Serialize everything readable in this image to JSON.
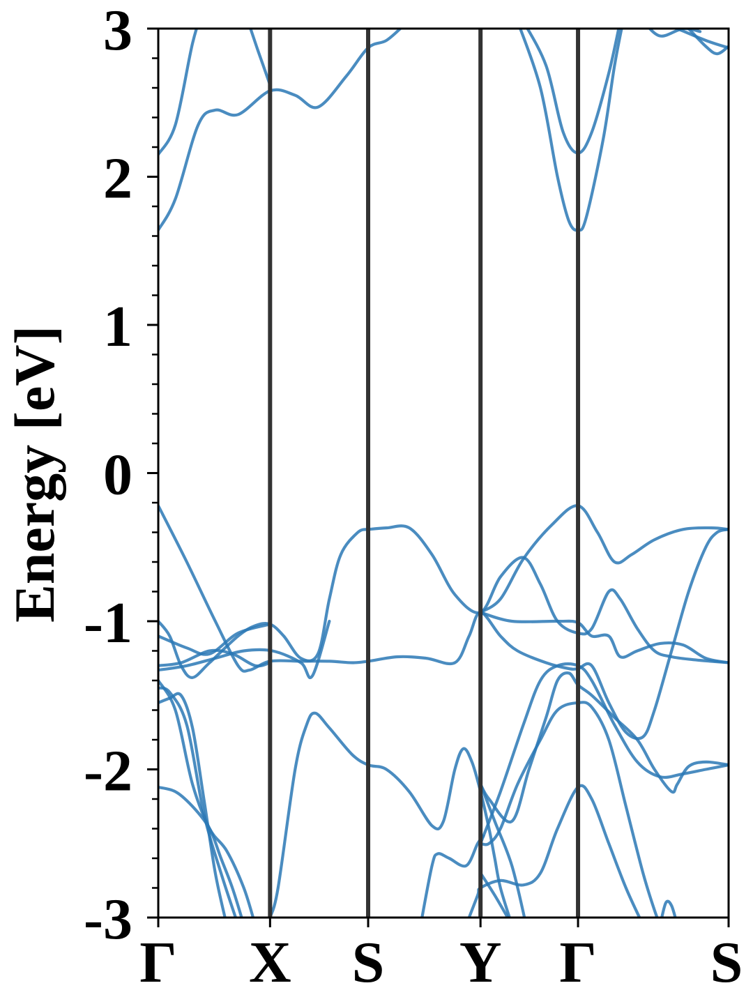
{
  "chart_data": {
    "type": "line",
    "title": "",
    "ylabel": "Energy [eV]",
    "xlabel": "",
    "ylim": [
      -3,
      3
    ],
    "yticks": [
      "-3",
      "-2",
      "-1",
      "0",
      "1",
      "2",
      "3"
    ],
    "high_symmetry_points": [
      {
        "label": "Γ",
        "k": 0.0
      },
      {
        "label": "X",
        "k": 0.196
      },
      {
        "label": "S",
        "k": 0.368
      },
      {
        "label": "Y",
        "k": 0.565
      },
      {
        "label": "Γ",
        "k": 0.736
      },
      {
        "label": "S",
        "k": 1.0
      }
    ],
    "grid": false,
    "band_color": "#2a78b5",
    "kpath_line_color": "#333333",
    "series": [
      {
        "values": [
          [
            0,
            2.15
          ],
          [
            0.03,
            2.35
          ],
          [
            0.06,
            2.9
          ],
          [
            0.08,
            3.15
          ]
        ]
      },
      {
        "values": [
          [
            0,
            1.64
          ],
          [
            0.03,
            1.85
          ],
          [
            0.07,
            2.35
          ],
          [
            0.1,
            2.45
          ],
          [
            0.14,
            2.42
          ],
          [
            0.196,
            2.58
          ],
          [
            0.24,
            2.55
          ],
          [
            0.28,
            2.47
          ],
          [
            0.33,
            2.68
          ],
          [
            0.368,
            2.87
          ],
          [
            0.4,
            2.92
          ],
          [
            0.43,
            3.02
          ]
        ]
      },
      {
        "values": [
          [
            0.16,
            3.02
          ],
          [
            0.175,
            2.85
          ],
          [
            0.196,
            2.62
          ]
        ]
      },
      {
        "values": [
          [
            0.63,
            3.05
          ],
          [
            0.67,
            2.6
          ],
          [
            0.7,
            2.0
          ],
          [
            0.72,
            1.7
          ],
          [
            0.736,
            1.64
          ],
          [
            0.75,
            1.72
          ],
          [
            0.78,
            2.25
          ],
          [
            0.8,
            2.75
          ],
          [
            0.815,
            3.05
          ]
        ]
      },
      {
        "values": [
          [
            0.64,
            3.05
          ],
          [
            0.68,
            2.75
          ],
          [
            0.71,
            2.3
          ],
          [
            0.736,
            2.16
          ],
          [
            0.76,
            2.3
          ],
          [
            0.79,
            2.7
          ],
          [
            0.81,
            3.05
          ]
        ]
      },
      {
        "values": [
          [
            0.85,
            3.05
          ],
          [
            0.88,
            2.95
          ],
          [
            0.92,
            3.0
          ],
          [
            0.95,
            2.98
          ]
        ]
      },
      {
        "values": [
          [
            0.93,
            3.0
          ],
          [
            0.96,
            2.88
          ],
          [
            0.98,
            2.83
          ],
          [
            1.0,
            2.88
          ]
        ]
      },
      {
        "values": [
          [
            0.91,
            3.0
          ],
          [
            0.96,
            2.92
          ],
          [
            1.0,
            2.87
          ]
        ]
      },
      {
        "values": [
          [
            0,
            -0.22
          ],
          [
            0.05,
            -0.6
          ],
          [
            0.1,
            -1.0
          ],
          [
            0.14,
            -1.3
          ],
          [
            0.16,
            -1.33
          ],
          [
            0.196,
            -1.27
          ],
          [
            0.25,
            -1.27
          ],
          [
            0.3,
            -1.27
          ],
          [
            0.34,
            -1.28
          ],
          [
            0.368,
            -1.27
          ],
          [
            0.42,
            -1.24
          ],
          [
            0.47,
            -1.25
          ],
          [
            0.52,
            -1.28
          ],
          [
            0.545,
            -1.1
          ],
          [
            0.565,
            -0.94
          ],
          [
            0.6,
            -1.1
          ],
          [
            0.63,
            -1.2
          ],
          [
            0.68,
            -1.28
          ],
          [
            0.72,
            -1.32
          ],
          [
            0.736,
            -1.32
          ],
          [
            0.76,
            -1.3
          ],
          [
            0.79,
            -1.55
          ],
          [
            0.82,
            -1.75
          ],
          [
            0.85,
            -1.78
          ],
          [
            0.87,
            -1.6
          ],
          [
            0.9,
            -1.2
          ],
          [
            0.93,
            -0.8
          ],
          [
            0.96,
            -0.5
          ],
          [
            0.98,
            -0.4
          ],
          [
            1.0,
            -0.38
          ]
        ]
      },
      {
        "values": [
          [
            0.368,
            -0.38
          ],
          [
            0.4,
            -0.37
          ],
          [
            0.44,
            -0.37
          ],
          [
            0.48,
            -0.55
          ],
          [
            0.52,
            -0.82
          ],
          [
            0.565,
            -0.94
          ],
          [
            0.6,
            -0.7
          ],
          [
            0.64,
            -0.57
          ],
          [
            0.67,
            -0.75
          ],
          [
            0.7,
            -1.0
          ],
          [
            0.736,
            -1.08
          ],
          [
            0.76,
            -1.05
          ],
          [
            0.79,
            -0.8
          ],
          [
            0.81,
            -0.85
          ],
          [
            0.84,
            -1.05
          ],
          [
            0.87,
            -1.2
          ],
          [
            0.9,
            -1.24
          ],
          [
            0.94,
            -1.26
          ],
          [
            1.0,
            -1.28
          ]
        ]
      },
      {
        "values": [
          [
            0.565,
            -0.94
          ],
          [
            0.6,
            -0.85
          ],
          [
            0.64,
            -0.58
          ],
          [
            0.69,
            -0.35
          ],
          [
            0.736,
            -0.22
          ],
          [
            0.77,
            -0.4
          ],
          [
            0.8,
            -0.6
          ],
          [
            0.83,
            -0.55
          ],
          [
            0.87,
            -0.45
          ],
          [
            0.92,
            -0.38
          ],
          [
            0.97,
            -0.37
          ],
          [
            1.0,
            -0.38
          ]
        ]
      },
      {
        "values": [
          [
            0.565,
            -0.94
          ],
          [
            0.62,
            -1.0
          ],
          [
            0.7,
            -1.0
          ],
          [
            0.736,
            -1.01
          ],
          [
            0.76,
            -1.1
          ],
          [
            0.79,
            -1.1
          ],
          [
            0.81,
            -1.24
          ],
          [
            0.84,
            -1.2
          ],
          [
            0.88,
            -1.15
          ],
          [
            0.92,
            -1.16
          ],
          [
            0.96,
            -1.25
          ],
          [
            1.0,
            -1.28
          ]
        ]
      },
      {
        "values": [
          [
            0,
            -1.0
          ],
          [
            0.02,
            -1.1
          ],
          [
            0.04,
            -1.3
          ],
          [
            0.06,
            -1.38
          ],
          [
            0.09,
            -1.28
          ],
          [
            0.14,
            -1.1
          ],
          [
            0.17,
            -1.03
          ],
          [
            0.196,
            -1.02
          ],
          [
            0.22,
            -1.1
          ],
          [
            0.25,
            -1.25
          ],
          [
            0.28,
            -1.22
          ],
          [
            0.3,
            -0.85
          ],
          [
            0.32,
            -0.55
          ],
          [
            0.35,
            -0.4
          ],
          [
            0.368,
            -0.38
          ]
        ]
      },
      {
        "values": [
          [
            0,
            -1.1
          ],
          [
            0.05,
            -1.18
          ],
          [
            0.09,
            -1.22
          ],
          [
            0.14,
            -1.08
          ],
          [
            0.196,
            -1.02
          ]
        ]
      },
      {
        "values": [
          [
            0,
            -1.3
          ],
          [
            0.04,
            -1.28
          ],
          [
            0.09,
            -1.2
          ],
          [
            0.13,
            -1.22
          ],
          [
            0.17,
            -1.3
          ],
          [
            0.196,
            -1.28
          ]
        ]
      },
      {
        "values": [
          [
            0,
            -1.33
          ],
          [
            0.05,
            -1.3
          ],
          [
            0.1,
            -1.25
          ],
          [
            0.15,
            -1.2
          ],
          [
            0.2,
            -1.2
          ],
          [
            0.25,
            -1.28
          ],
          [
            0.27,
            -1.37
          ],
          [
            0.3,
            -1.0
          ]
        ]
      },
      {
        "values": [
          [
            0,
            -1.55
          ],
          [
            0.02,
            -1.52
          ],
          [
            0.04,
            -1.5
          ],
          [
            0.06,
            -1.72
          ],
          [
            0.08,
            -2.2
          ],
          [
            0.1,
            -2.7
          ],
          [
            0.12,
            -3.05
          ]
        ]
      },
      {
        "values": [
          [
            0,
            -1.45
          ],
          [
            0.02,
            -1.48
          ],
          [
            0.05,
            -1.7
          ],
          [
            0.08,
            -2.3
          ],
          [
            0.11,
            -2.7
          ],
          [
            0.14,
            -3.05
          ]
        ]
      },
      {
        "values": [
          [
            0,
            -1.4
          ],
          [
            0.03,
            -1.6
          ],
          [
            0.06,
            -2.1
          ],
          [
            0.09,
            -2.4
          ],
          [
            0.12,
            -2.55
          ],
          [
            0.15,
            -2.8
          ],
          [
            0.17,
            -3.05
          ]
        ]
      },
      {
        "values": [
          [
            0,
            -2.12
          ],
          [
            0.03,
            -2.15
          ],
          [
            0.06,
            -2.25
          ],
          [
            0.09,
            -2.4
          ],
          [
            0.11,
            -2.6
          ],
          [
            0.13,
            -2.8
          ],
          [
            0.15,
            -3.05
          ]
        ]
      },
      {
        "values": [
          [
            0.196,
            -3.0
          ],
          [
            0.21,
            -2.8
          ],
          [
            0.24,
            -2.0
          ],
          [
            0.26,
            -1.7
          ],
          [
            0.275,
            -1.62
          ],
          [
            0.3,
            -1.72
          ],
          [
            0.34,
            -1.9
          ],
          [
            0.368,
            -1.97
          ],
          [
            0.4,
            -2.0
          ],
          [
            0.44,
            -2.15
          ],
          [
            0.48,
            -2.38
          ],
          [
            0.5,
            -2.35
          ],
          [
            0.52,
            -2.0
          ],
          [
            0.535,
            -1.86
          ],
          [
            0.55,
            -1.95
          ],
          [
            0.565,
            -2.15
          ],
          [
            0.58,
            -2.4
          ],
          [
            0.59,
            -2.6
          ],
          [
            0.6,
            -2.8
          ],
          [
            0.62,
            -3.05
          ]
        ]
      },
      {
        "values": [
          [
            0.46,
            -3.05
          ],
          [
            0.48,
            -2.65
          ],
          [
            0.49,
            -2.57
          ],
          [
            0.51,
            -2.6
          ],
          [
            0.54,
            -2.65
          ],
          [
            0.56,
            -2.5
          ],
          [
            0.57,
            -2.45
          ]
        ]
      },
      {
        "values": [
          [
            0.54,
            -3.05
          ],
          [
            0.56,
            -2.85
          ],
          [
            0.565,
            -2.8
          ],
          [
            0.6,
            -2.75
          ],
          [
            0.64,
            -2.78
          ],
          [
            0.67,
            -2.7
          ],
          [
            0.7,
            -2.4
          ],
          [
            0.736,
            -2.12
          ],
          [
            0.76,
            -2.2
          ],
          [
            0.79,
            -2.5
          ],
          [
            0.82,
            -2.8
          ],
          [
            0.85,
            -3.05
          ]
        ]
      },
      {
        "values": [
          [
            0.565,
            -2.5
          ],
          [
            0.58,
            -2.5
          ],
          [
            0.6,
            -2.4
          ],
          [
            0.63,
            -2.1
          ],
          [
            0.67,
            -1.8
          ],
          [
            0.7,
            -1.6
          ],
          [
            0.736,
            -1.55
          ],
          [
            0.76,
            -1.58
          ],
          [
            0.79,
            -1.8
          ],
          [
            0.82,
            -2.25
          ],
          [
            0.85,
            -2.7
          ],
          [
            0.87,
            -2.95
          ],
          [
            0.88,
            -3.05
          ]
        ]
      },
      {
        "values": [
          [
            0.565,
            -2.1
          ],
          [
            0.58,
            -2.2
          ],
          [
            0.62,
            -2.35
          ],
          [
            0.65,
            -2.0
          ],
          [
            0.68,
            -1.65
          ],
          [
            0.7,
            -1.4
          ],
          [
            0.72,
            -1.35
          ],
          [
            0.736,
            -1.43
          ],
          [
            0.76,
            -1.5
          ],
          [
            0.8,
            -1.65
          ],
          [
            0.84,
            -1.8
          ],
          [
            0.87,
            -2.0
          ],
          [
            0.9,
            -2.15
          ],
          [
            0.91,
            -2.1
          ],
          [
            0.93,
            -1.98
          ],
          [
            0.96,
            -1.95
          ],
          [
            1.0,
            -1.97
          ]
        ]
      },
      {
        "values": [
          [
            0.565,
            -2.5
          ],
          [
            0.6,
            -2.15
          ],
          [
            0.64,
            -1.7
          ],
          [
            0.67,
            -1.4
          ],
          [
            0.7,
            -1.3
          ],
          [
            0.736,
            -1.3
          ],
          [
            0.76,
            -1.4
          ],
          [
            0.8,
            -1.7
          ],
          [
            0.84,
            -1.95
          ],
          [
            0.88,
            -2.05
          ],
          [
            0.92,
            -2.03
          ],
          [
            0.96,
            -2.0
          ],
          [
            1.0,
            -1.97
          ]
        ]
      },
      {
        "values": [
          [
            0.565,
            -2.7
          ],
          [
            0.59,
            -2.85
          ],
          [
            0.62,
            -3.05
          ]
        ]
      },
      {
        "values": [
          [
            0.565,
            -2.1
          ],
          [
            0.59,
            -2.35
          ],
          [
            0.62,
            -2.65
          ],
          [
            0.645,
            -3.05
          ]
        ]
      },
      {
        "values": [
          [
            0.88,
            -3.05
          ],
          [
            0.89,
            -2.9
          ],
          [
            0.9,
            -2.92
          ],
          [
            0.91,
            -3.05
          ]
        ]
      }
    ]
  }
}
